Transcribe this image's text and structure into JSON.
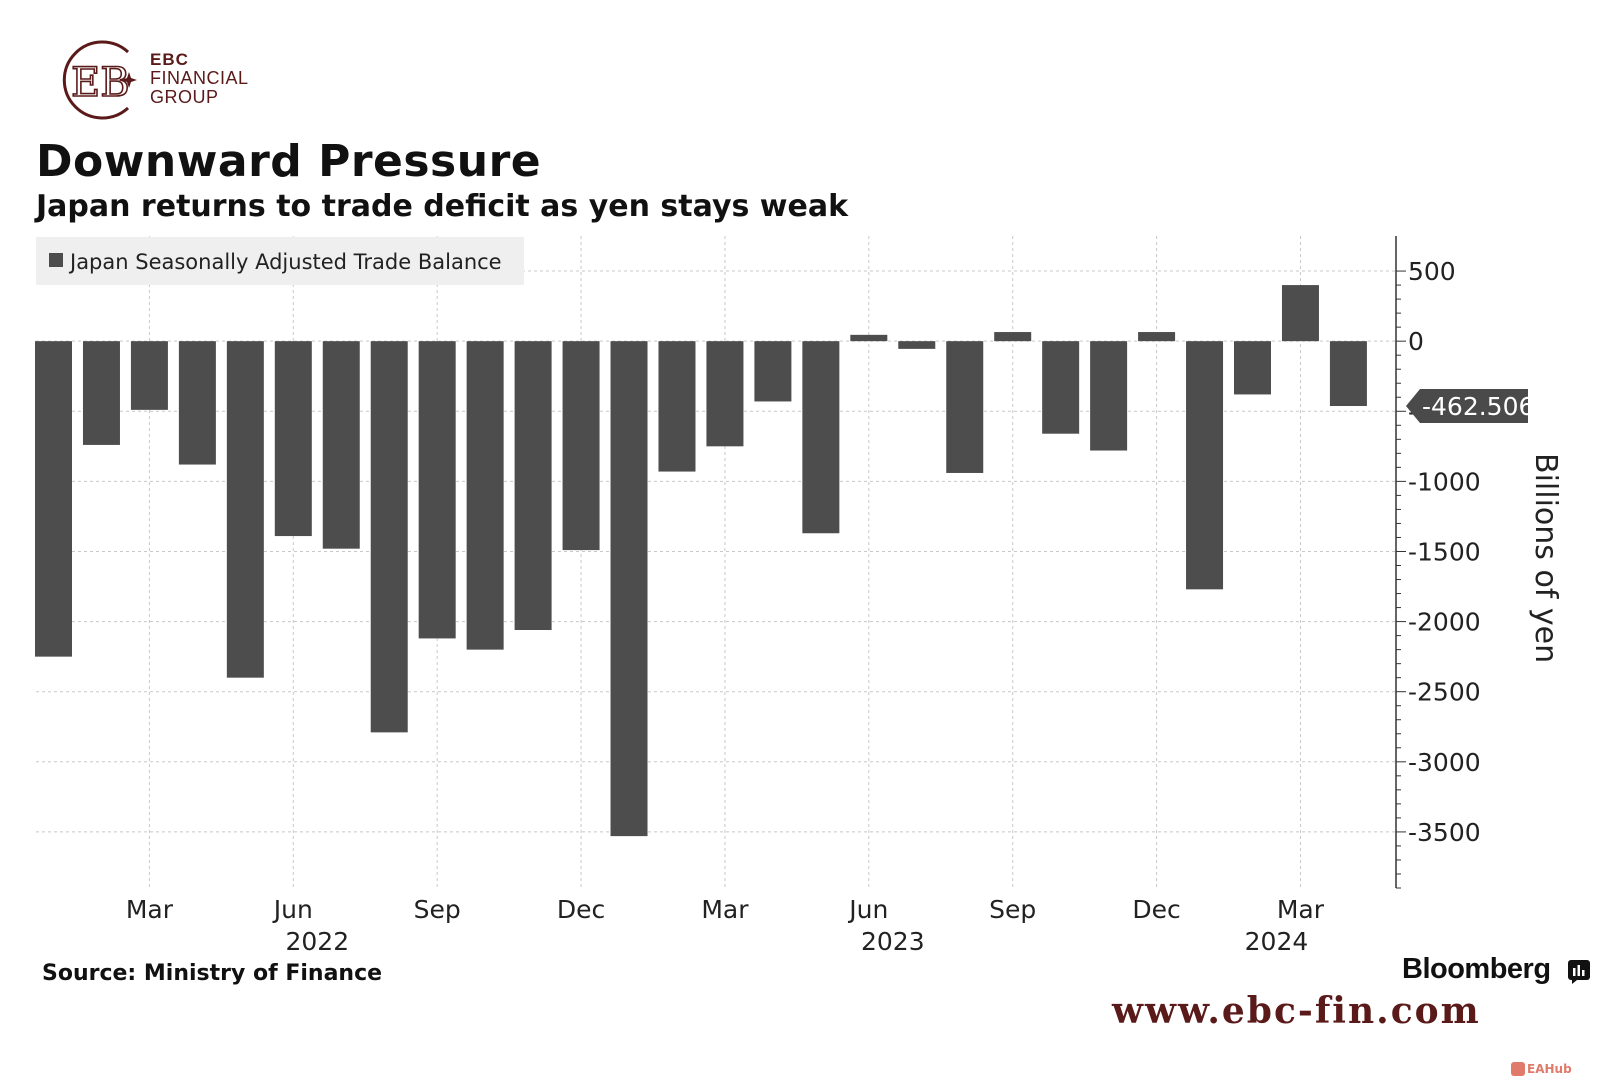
{
  "brand": {
    "logo_line1": "EBC",
    "logo_line2": "FINANCIAL",
    "logo_line3": "GROUP",
    "logo_color": "#5a1a1a",
    "website": "www.ebc-fin.com",
    "watermark": "EAHub"
  },
  "footer": {
    "source": "Source: Ministry of Finance",
    "publisher": "Bloomberg"
  },
  "chart_data": {
    "type": "bar",
    "title": "Downward Pressure",
    "subtitle": "Japan returns to trade deficit as yen stays weak",
    "legend": "Japan Seasonally Adjusted Trade Balance",
    "legend_position": "top-left",
    "ylabel": "Billions of yen",
    "ylim": [
      -3900,
      750
    ],
    "y_ticks": [
      500,
      0,
      -500,
      -1000,
      -1500,
      -2000,
      -2500,
      -3000,
      -3500
    ],
    "y_axis_side": "right",
    "grid": true,
    "bar_color": "#4d4d4d",
    "last_value_label": "-462.506",
    "x_tick_labels": [
      {
        "month": "Mar",
        "year": "",
        "index": 2
      },
      {
        "month": "Jun",
        "year": "2022",
        "index": 5
      },
      {
        "month": "Sep",
        "year": "",
        "index": 8
      },
      {
        "month": "Dec",
        "year": "",
        "index": 11
      },
      {
        "month": "Mar",
        "year": "",
        "index": 14
      },
      {
        "month": "Jun",
        "year": "2023",
        "index": 17
      },
      {
        "month": "Sep",
        "year": "",
        "index": 20
      },
      {
        "month": "Dec",
        "year": "",
        "index": 23
      },
      {
        "month": "Mar",
        "year": "2024",
        "index": 26
      }
    ],
    "values": [
      -2250,
      -740,
      -490,
      -880,
      -2400,
      -1390,
      -1480,
      -2790,
      -2120,
      -2200,
      -2060,
      -1490,
      -3530,
      -930,
      -750,
      -430,
      -1370,
      45,
      -55,
      -940,
      65,
      -660,
      -780,
      65,
      -1770,
      -380,
      400,
      -462.506
    ]
  }
}
